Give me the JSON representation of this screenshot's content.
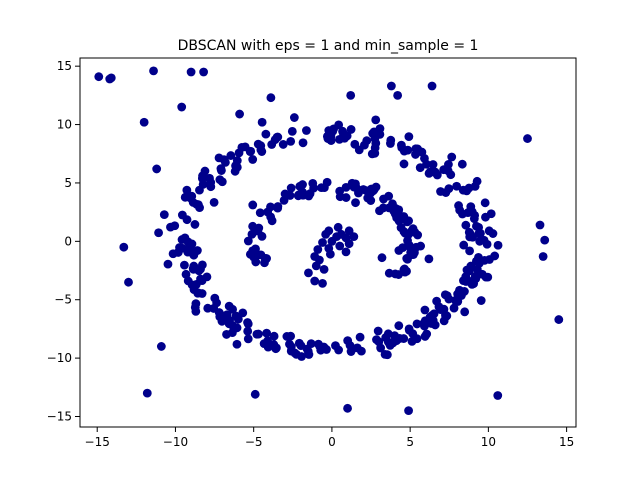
{
  "chart_data": {
    "type": "scatter",
    "title": "DBSCAN with eps = 1 and min_sample = 1",
    "xlabel": "",
    "ylabel": "",
    "xlim": [
      -16.1,
      15.6
    ],
    "ylim": [
      -15.9,
      15.7
    ],
    "xticks": [
      -15,
      -10,
      -5,
      0,
      5,
      10,
      15
    ],
    "yticks": [
      -15,
      -10,
      -5,
      0,
      5,
      10,
      15
    ],
    "grid": false,
    "legend": "none",
    "marker_color": "#00008b",
    "outliers": [
      [
        -14.9,
        14.1
      ],
      [
        -14.2,
        13.9
      ],
      [
        -14.1,
        14.0
      ],
      [
        -11.4,
        14.6
      ],
      [
        -9.0,
        14.5
      ],
      [
        -8.2,
        14.5
      ],
      [
        -9.6,
        11.5
      ],
      [
        -12.0,
        10.2
      ],
      [
        -11.2,
        6.2
      ],
      [
        -13.3,
        -0.5
      ],
      [
        -13.0,
        -3.5
      ],
      [
        -10.9,
        -9.0
      ],
      [
        -11.8,
        -13.0
      ],
      [
        -4.9,
        -13.1
      ],
      [
        1.0,
        -14.3
      ],
      [
        4.9,
        -14.5
      ],
      [
        10.6,
        -13.2
      ],
      [
        14.5,
        -6.7
      ],
      [
        13.6,
        0.1
      ],
      [
        13.5,
        -1.3
      ],
      [
        13.3,
        1.4
      ],
      [
        12.5,
        8.8
      ],
      [
        6.4,
        13.3
      ],
      [
        3.8,
        13.3
      ],
      [
        4.2,
        12.5
      ],
      [
        1.2,
        12.5
      ],
      [
        -3.9,
        12.3
      ],
      [
        -5.9,
        10.9
      ],
      [
        -0.6,
        -3.6
      ],
      [
        -1.1,
        -3.4
      ],
      [
        1.8,
        -8.2
      ],
      [
        3.0,
        -8.6
      ],
      [
        6.2,
        -1.5
      ],
      [
        3.2,
        -1.4
      ],
      [
        2.8,
        10.4
      ],
      [
        -2.4,
        10.6
      ]
    ],
    "inner_points": [
      [
        0.0,
        0.0
      ],
      [
        0.3,
        0.4
      ],
      [
        -0.2,
        0.9
      ],
      [
        0.6,
        0.6
      ],
      [
        0.9,
        0.3
      ],
      [
        1.1,
        0.9
      ],
      [
        0.4,
        1.2
      ],
      [
        -0.4,
        0.6
      ],
      [
        -0.6,
        -0.1
      ],
      [
        -0.2,
        -0.6
      ],
      [
        0.5,
        -0.4
      ],
      [
        1.1,
        -0.2
      ],
      [
        1.4,
        0.4
      ],
      [
        -0.9,
        -0.7
      ],
      [
        -1.1,
        -1.3
      ],
      [
        -0.8,
        -1.6
      ],
      [
        -0.5,
        -2.4
      ],
      [
        -1.0,
        -2.1
      ],
      [
        -1.5,
        -2.7
      ],
      [
        -0.1,
        -1.1
      ],
      [
        0.9,
        -0.9
      ]
    ],
    "n_spiral_samples": 500
  }
}
